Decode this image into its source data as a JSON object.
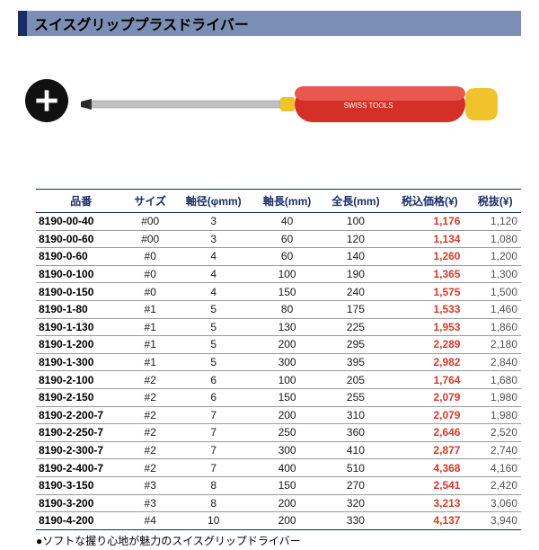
{
  "title": "スイスグリッププラスドライバー",
  "brand_label": "SWISS TOOLS",
  "columns": [
    "品番",
    "サイズ",
    "軸径(φmm)",
    "軸長(mm)",
    "全長(mm)",
    "税込価格(¥)",
    "税抜(¥)"
  ],
  "rows": [
    [
      "8190-00-40",
      "#00",
      "3",
      "40",
      "100",
      "1,176",
      "1,120"
    ],
    [
      "8190-00-60",
      "#00",
      "3",
      "60",
      "120",
      "1,134",
      "1,080"
    ],
    [
      "8190-0-60",
      "#0",
      "4",
      "60",
      "140",
      "1,260",
      "1,200"
    ],
    [
      "8190-0-100",
      "#0",
      "4",
      "100",
      "190",
      "1,365",
      "1,300"
    ],
    [
      "8190-0-150",
      "#0",
      "4",
      "150",
      "240",
      "1,575",
      "1,500"
    ],
    [
      "8190-1-80",
      "#1",
      "5",
      "80",
      "175",
      "1,533",
      "1,460"
    ],
    [
      "8190-1-130",
      "#1",
      "5",
      "130",
      "225",
      "1,953",
      "1,860"
    ],
    [
      "8190-1-200",
      "#1",
      "5",
      "200",
      "295",
      "2,289",
      "2,180"
    ],
    [
      "8190-1-300",
      "#1",
      "5",
      "300",
      "395",
      "2,982",
      "2,840"
    ],
    [
      "8190-2-100",
      "#2",
      "6",
      "100",
      "205",
      "1,764",
      "1,680"
    ],
    [
      "8190-2-150",
      "#2",
      "6",
      "150",
      "255",
      "2,079",
      "1,980"
    ],
    [
      "8190-2-200-7",
      "#2",
      "7",
      "200",
      "310",
      "2,079",
      "1,980"
    ],
    [
      "8190-2-250-7",
      "#2",
      "7",
      "250",
      "360",
      "2,646",
      "2,520"
    ],
    [
      "8190-2-300-7",
      "#2",
      "7",
      "300",
      "410",
      "2,877",
      "2,740"
    ],
    [
      "8190-2-400-7",
      "#2",
      "7",
      "400",
      "510",
      "4,368",
      "4,160"
    ],
    [
      "8190-3-150",
      "#3",
      "8",
      "150",
      "270",
      "2,541",
      "2,420"
    ],
    [
      "8190-3-200",
      "#3",
      "8",
      "200",
      "320",
      "3,213",
      "3,060"
    ],
    [
      "8190-4-200",
      "#4",
      "10",
      "200",
      "330",
      "4,137",
      "3,940"
    ]
  ],
  "footnote": "●ソフトな握り心地が魅力のスイスグリップドライバー",
  "colors": {
    "header_accent": "#1b2d66",
    "header_bg": "#7b8fb5",
    "price_color": "#d23b2a",
    "rule": "#1b2d66",
    "handle_red": "#d53027",
    "handle_yellow": "#f0c22c",
    "shaft": "#b9b9b9",
    "tip": "#2a2a2a"
  }
}
